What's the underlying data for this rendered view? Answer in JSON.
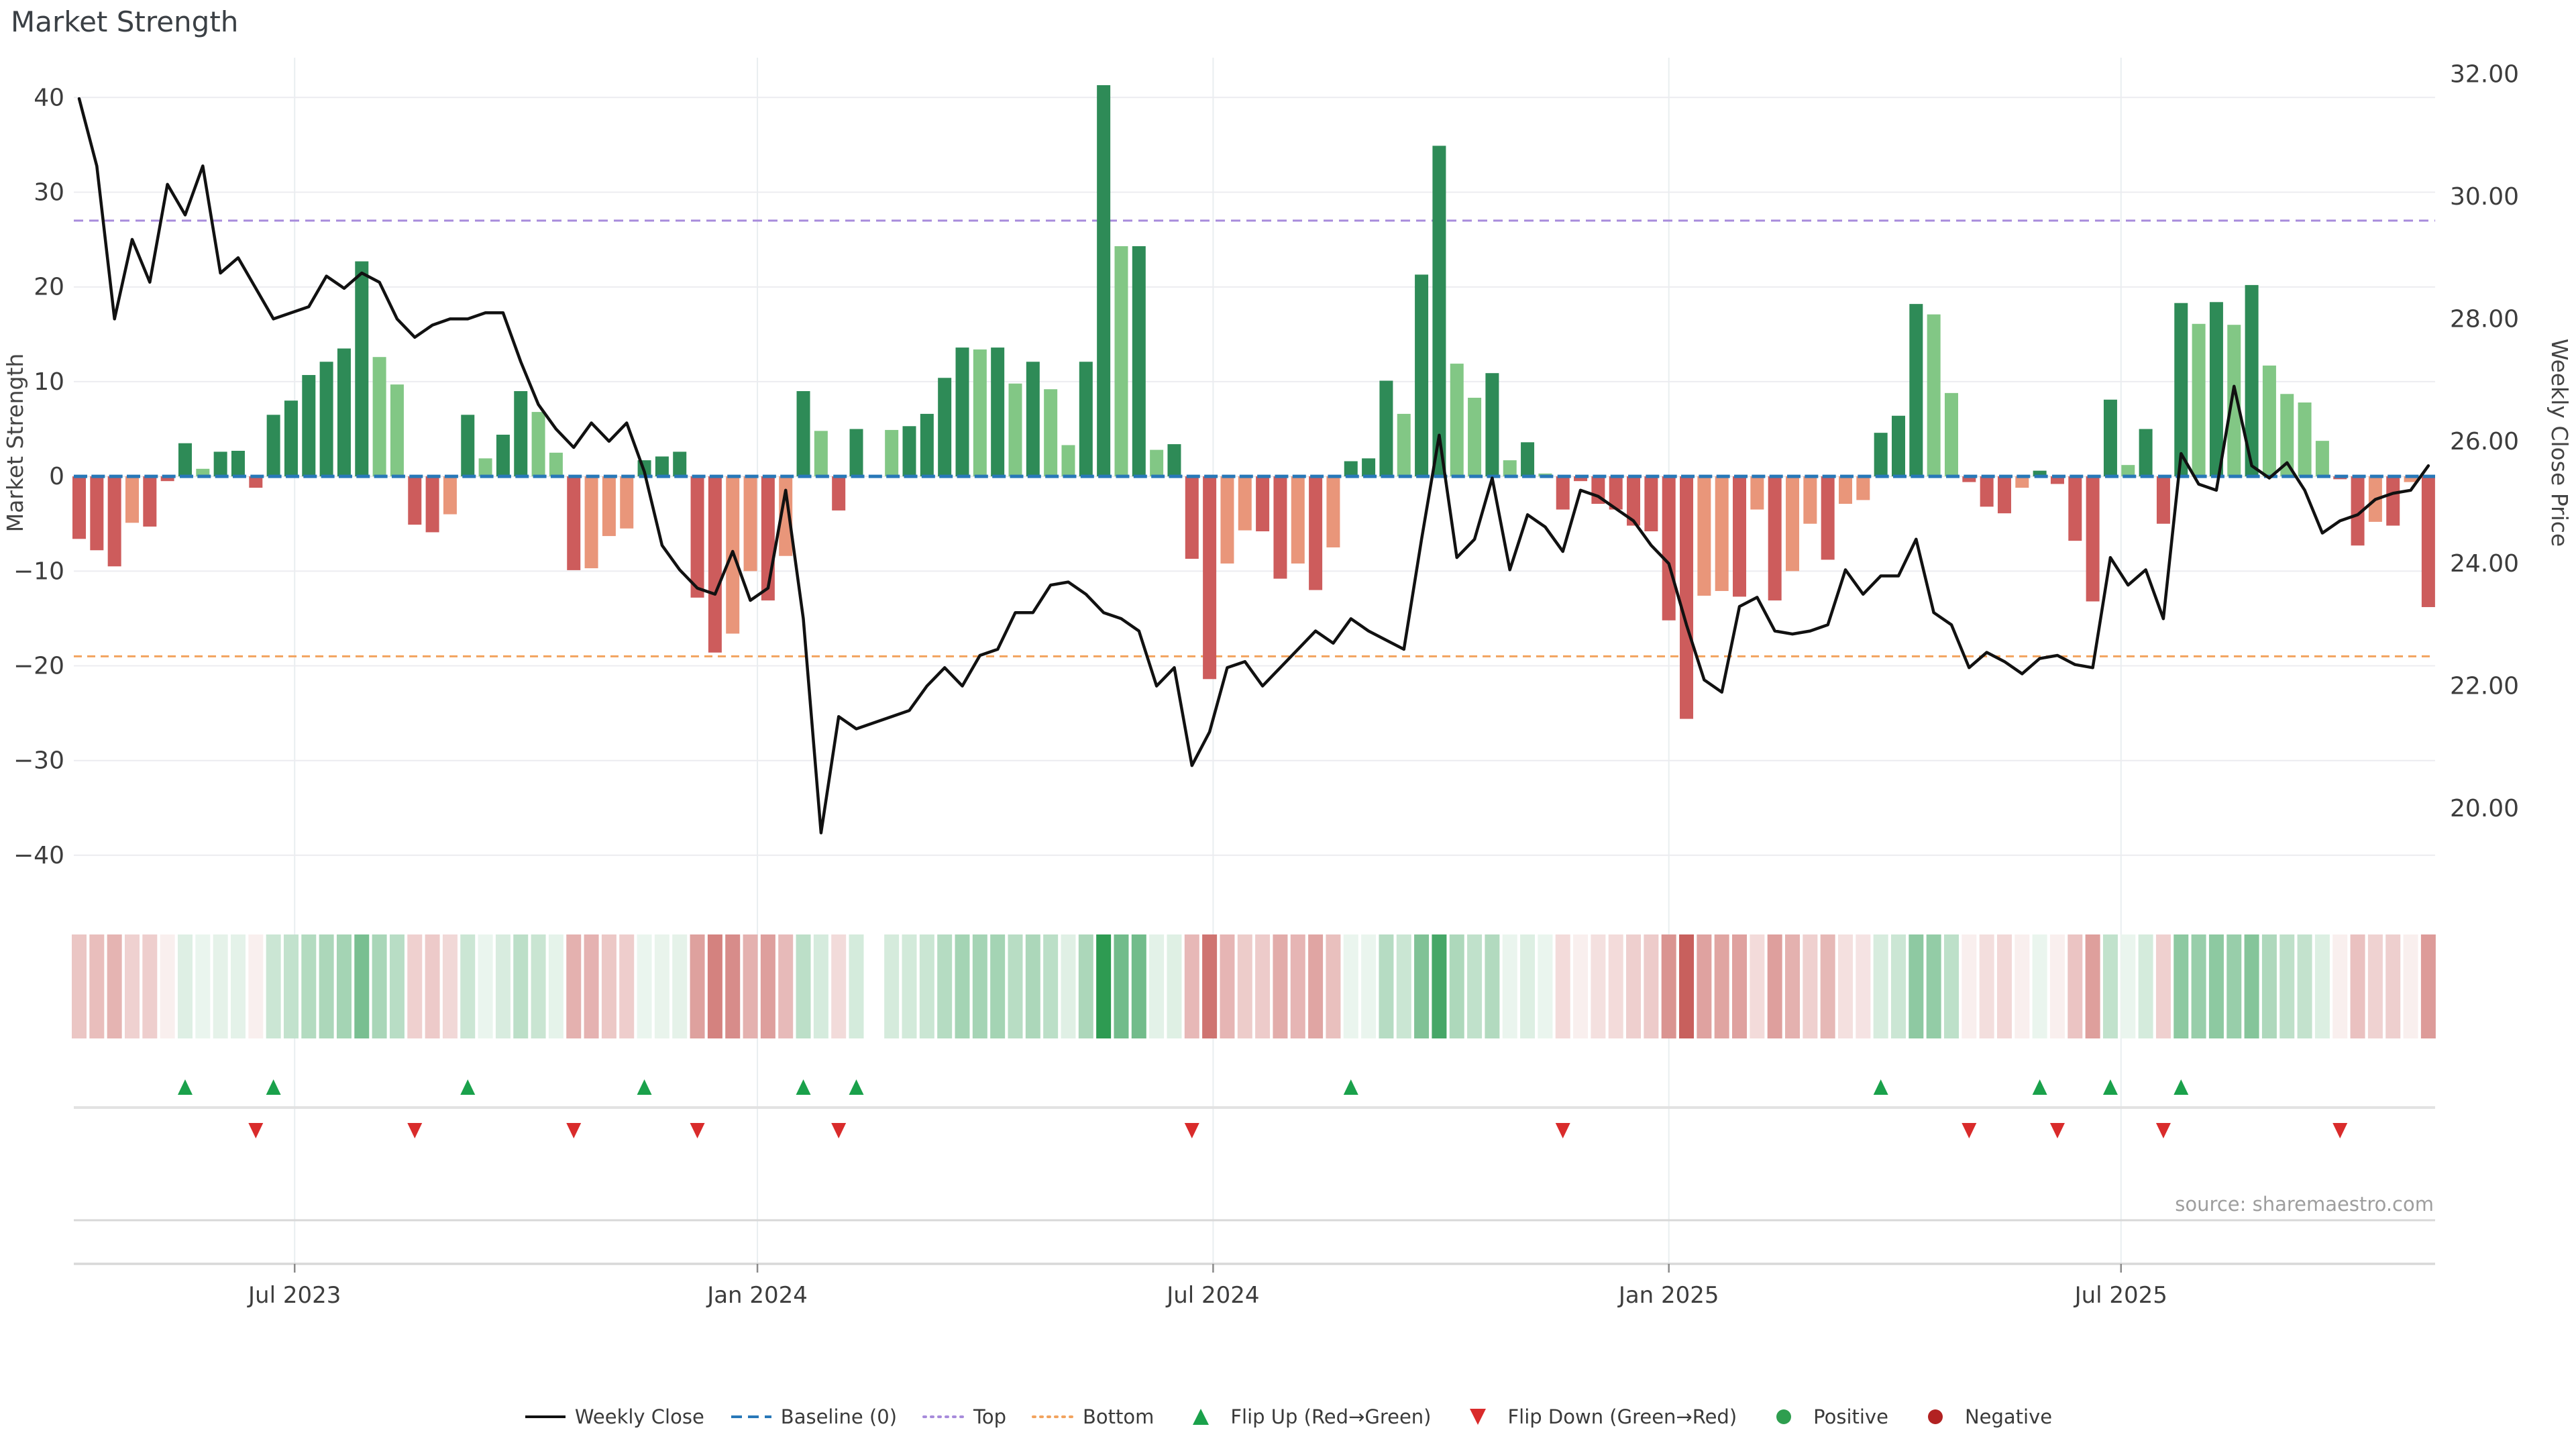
{
  "title": "Market Strength",
  "source": "source: sharemaestro.com",
  "colors": {
    "bar_dark_green": "#2e8b57",
    "bar_light_green": "#82c785",
    "bar_dark_red": "#cd5c5c",
    "bar_salmon": "#e9967a",
    "price_line": "#111111",
    "baseline": "#2878b8",
    "top_line": "#a78bdb",
    "bottom_line": "#f2a35e",
    "flip_up": "#1aa14b",
    "flip_down": "#d92b2b",
    "positive_dot": "#2e9e4f",
    "negative_dot": "#b22222",
    "grid": "#ececf0",
    "vgrid": "#e9eef0",
    "panel_line": "#d8d8d8",
    "tick_text": "#3d3d3d",
    "axis_title": "#444444"
  },
  "legend": [
    {
      "label": "Weekly Close",
      "type": "line"
    },
    {
      "label": "Baseline (0)",
      "type": "dash"
    },
    {
      "label": "Top",
      "type": "dot-purple"
    },
    {
      "label": "Bottom",
      "type": "dot-orange"
    },
    {
      "label": "Flip Up (Red→Green)",
      "type": "tri-up"
    },
    {
      "label": "Flip Down (Green→Red)",
      "type": "tri-down"
    },
    {
      "label": "Positive",
      "type": "circle-green"
    },
    {
      "label": "Negative",
      "type": "circle-red"
    }
  ],
  "chart_data": {
    "type": "bar",
    "title": "Market Strength",
    "left_axis": {
      "label": "Market Strength",
      "ticks": [
        40,
        30,
        20,
        10,
        0,
        -10,
        -20,
        -30,
        -40
      ],
      "range": [
        -43.9,
        44.2
      ]
    },
    "right_axis": {
      "label": "Weekly Close Price",
      "ticks": [
        32,
        30,
        28,
        26,
        24,
        22,
        20
      ],
      "range": [
        18.63,
        32.27
      ]
    },
    "baseline_value": 0,
    "top_value": 27,
    "bottom_value": -19,
    "x_ticks": [
      {
        "label": "Jul 2023",
        "week": 12.2
      },
      {
        "label": "Jan 2024",
        "week": 38.4
      },
      {
        "label": "Jul 2024",
        "week": 64.2
      },
      {
        "label": "Jan 2025",
        "week": 90.0
      },
      {
        "label": "Jul 2025",
        "week": 115.6
      }
    ],
    "series": [
      {
        "name": "Market Strength",
        "type": "bar",
        "axis": "left"
      },
      {
        "name": "Weekly Close",
        "type": "line",
        "axis": "right"
      }
    ],
    "weeks": {
      "values": [
        -6.6,
        -7.8,
        -9.5,
        -4.9,
        -5.3,
        -0.5,
        3.5,
        0.8,
        2.6,
        2.7,
        -1.2,
        6.5,
        8.0,
        10.7,
        12.1,
        13.5,
        22.7,
        12.6,
        9.7,
        -5.1,
        -5.9,
        -4.0,
        6.5,
        1.9,
        4.4,
        9.0,
        6.8,
        2.5,
        -9.9,
        -9.7,
        -6.3,
        -5.5,
        1.7,
        2.1,
        2.6,
        -12.8,
        -18.6,
        -16.6,
        -10.0,
        -13.1,
        -8.4,
        9.0,
        4.8,
        -3.6,
        5.0,
        null,
        4.9,
        5.3,
        6.6,
        10.4,
        13.6,
        13.4,
        13.6,
        9.8,
        12.1,
        9.2,
        3.3,
        12.1,
        41.3,
        24.3,
        24.3,
        2.8,
        3.4,
        -8.7,
        -21.4,
        -9.2,
        -5.7,
        -5.8,
        -10.8,
        -9.2,
        -12.0,
        -7.5,
        1.6,
        1.9,
        10.1,
        6.6,
        21.3,
        34.9,
        11.9,
        8.3,
        10.9,
        1.7,
        3.6,
        0.3,
        -3.5,
        -0.5,
        -2.9,
        -3.5,
        -5.2,
        -5.8,
        -15.2,
        -25.6,
        -12.6,
        -12.1,
        -12.7,
        -3.5,
        -13.1,
        -10.0,
        -5.0,
        -8.8,
        -2.9,
        -2.5,
        4.6,
        6.4,
        18.2,
        17.1,
        8.8,
        -0.6,
        -3.2,
        -3.9,
        -1.2,
        0.6,
        -0.8,
        -6.8,
        -13.2,
        8.1,
        1.2,
        5.0,
        -5.0,
        18.3,
        16.1,
        18.4,
        16.0,
        20.2,
        11.7,
        8.7,
        7.8,
        3.75,
        -0.3,
        -7.3,
        -4.8,
        -5.2,
        -0.6,
        -13.8
      ],
      "shades": [
        "r",
        "r",
        "r",
        "s",
        "r",
        "r",
        "dg",
        "lg",
        "dg",
        "dg",
        "r",
        "dg",
        "dg",
        "dg",
        "dg",
        "dg",
        "dg",
        "lg",
        "lg",
        "r",
        "r",
        "s",
        "dg",
        "lg",
        "dg",
        "dg",
        "lg",
        "lg",
        "r",
        "s",
        "s",
        "s",
        "dg",
        "dg",
        "dg",
        "r",
        "r",
        "s",
        "s",
        "r",
        "s",
        "dg",
        "lg",
        "r",
        "dg",
        null,
        "lg",
        "dg",
        "dg",
        "dg",
        "dg",
        "lg",
        "dg",
        "lg",
        "dg",
        "lg",
        "lg",
        "dg",
        "dg",
        "lg",
        "dg",
        "lg",
        "dg",
        "r",
        "r",
        "s",
        "s",
        "r",
        "r",
        "s",
        "r",
        "s",
        "dg",
        "dg",
        "dg",
        "lg",
        "dg",
        "dg",
        "lg",
        "lg",
        "dg",
        "lg",
        "dg",
        "lg",
        "r",
        "r",
        "r",
        "r",
        "r",
        "r",
        "r",
        "r",
        "s",
        "s",
        "r",
        "s",
        "r",
        "s",
        "s",
        "r",
        "s",
        "s",
        "dg",
        "dg",
        "dg",
        "lg",
        "lg",
        "r",
        "r",
        "r",
        "s",
        "dg",
        "r",
        "r",
        "r",
        "dg",
        "lg",
        "dg",
        "r",
        "dg",
        "lg",
        "dg",
        "lg",
        "dg",
        "lg",
        "lg",
        "lg",
        "lg",
        "r",
        "r",
        "s",
        "r",
        "s",
        "r"
      ],
      "prices": [
        31.6,
        30.5,
        28.0,
        29.3,
        28.6,
        30.2,
        29.7,
        30.5,
        28.75,
        29.0,
        28.5,
        28.0,
        28.1,
        28.2,
        28.7,
        28.5,
        28.75,
        28.6,
        28.0,
        27.7,
        27.9,
        28.0,
        28.0,
        28.1,
        28.1,
        27.3,
        26.6,
        26.2,
        25.9,
        26.3,
        26.0,
        26.3,
        25.5,
        24.3,
        23.9,
        23.6,
        23.5,
        24.2,
        23.4,
        23.6,
        25.2,
        23.1,
        19.6,
        21.5,
        21.3,
        21.4,
        21.5,
        21.6,
        22.0,
        22.3,
        22.0,
        22.5,
        22.6,
        23.2,
        23.2,
        23.65,
        23.7,
        23.5,
        23.2,
        23.1,
        22.9,
        22.0,
        22.3,
        20.7,
        21.25,
        22.3,
        22.4,
        22.0,
        22.3,
        22.6,
        22.9,
        22.7,
        23.1,
        22.9,
        22.75,
        22.6,
        24.4,
        26.1,
        24.1,
        24.4,
        25.4,
        23.9,
        24.8,
        24.6,
        24.2,
        25.2,
        25.1,
        24.9,
        24.7,
        24.3,
        24.0,
        23.0,
        22.1,
        21.9,
        23.3,
        23.45,
        22.9,
        22.85,
        22.9,
        23.0,
        23.9,
        23.5,
        23.8,
        23.8,
        24.4,
        23.2,
        23.0,
        22.3,
        22.55,
        22.4,
        22.2,
        22.45,
        22.5,
        22.35,
        22.3,
        24.1,
        23.65,
        23.9,
        23.1,
        25.8,
        25.3,
        25.2,
        26.9,
        25.6,
        25.4,
        25.65,
        25.2,
        24.5,
        24.7,
        24.8,
        25.05,
        25.15,
        25.2,
        25.6
      ]
    }
  }
}
